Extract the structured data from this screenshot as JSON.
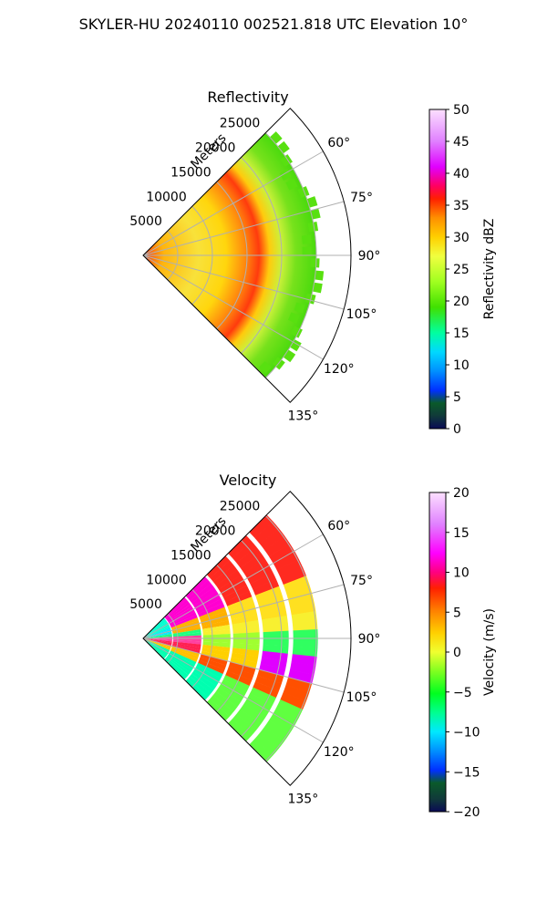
{
  "figure": {
    "title": "SKYLER-HU  20240110  002521.818 UTC Elevation 10°"
  },
  "chart_data": [
    {
      "type": "heatmap",
      "title": "Reflectivity",
      "radial_label": "Meters",
      "r_ticks": [
        5000,
        10000,
        15000,
        20000,
        25000
      ],
      "r_tick_labels": [
        "5000",
        "10000",
        "15000",
        "20000",
        "25000"
      ],
      "r_max": 30000,
      "azimuth_range": [
        45,
        135
      ],
      "azimuth_ticks": [
        60,
        75,
        90,
        105,
        120,
        135
      ],
      "azimuth_tick_labels": [
        "60°",
        "75°",
        "90°",
        "105°",
        "120°",
        "135°"
      ],
      "colorbar": {
        "label": "Reflectivity dBZ",
        "range": [
          0,
          50
        ],
        "ticks": [
          0,
          5,
          10,
          15,
          20,
          25,
          30,
          35,
          40,
          45,
          50
        ],
        "tick_labels": [
          "0",
          "5",
          "10",
          "15",
          "20",
          "25",
          "30",
          "35",
          "40",
          "45",
          "50"
        ]
      },
      "grid": true
    },
    {
      "type": "heatmap",
      "title": "Velocity",
      "radial_label": "Meters",
      "r_ticks": [
        5000,
        10000,
        15000,
        20000,
        25000
      ],
      "r_tick_labels": [
        "5000",
        "10000",
        "15000",
        "20000",
        "25000"
      ],
      "r_max": 30000,
      "azimuth_range": [
        45,
        135
      ],
      "azimuth_ticks": [
        60,
        75,
        90,
        105,
        120,
        135
      ],
      "azimuth_tick_labels": [
        "60°",
        "75°",
        "90°",
        "105°",
        "120°",
        "135°"
      ],
      "colorbar": {
        "label": "Velocity (m/s)",
        "range": [
          -20,
          20
        ],
        "ticks": [
          -20,
          -15,
          -10,
          -5,
          0,
          5,
          10,
          15,
          20
        ],
        "tick_labels": [
          "−20",
          "−15",
          "−10",
          "−5",
          "0",
          "5",
          "10",
          "15",
          "20"
        ]
      },
      "grid": true
    }
  ]
}
